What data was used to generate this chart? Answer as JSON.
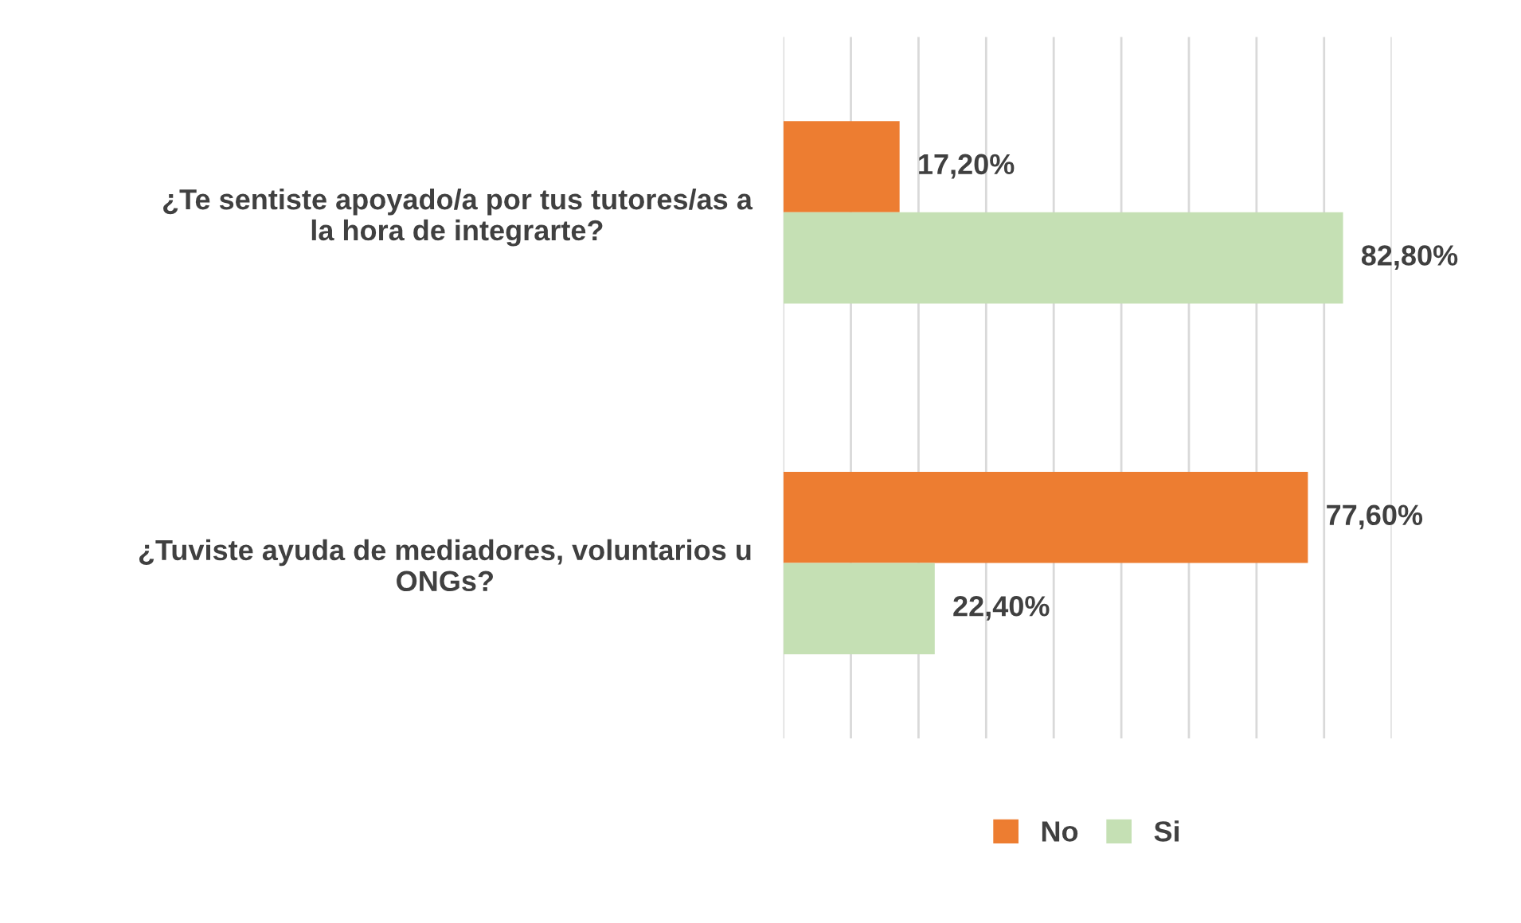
{
  "chart_data": {
    "type": "bar",
    "orientation": "horizontal",
    "categories": [
      "¿Te sentiste apoyado/a por tus tutores/as a la hora de integrarte?",
      "¿Tuviste ayuda de mediadores, voluntarios u ONGs?"
    ],
    "series": [
      {
        "name": "No",
        "color": "#ed7d31",
        "values": [
          17.2,
          77.6
        ],
        "value_labels": [
          "17,20%",
          "77,60%"
        ]
      },
      {
        "name": "Si",
        "color": "#c5e0b4",
        "values": [
          82.8,
          22.4
        ],
        "value_labels": [
          "82,80%",
          "22,40%"
        ]
      }
    ],
    "xlim": [
      0,
      90
    ],
    "xticks": [
      {
        "value": 0,
        "label": null
      },
      {
        "value": 10,
        "label": null
      },
      {
        "value": 20,
        "label": null
      },
      {
        "value": 30,
        "label": null
      },
      {
        "value": 40,
        "label": null
      },
      {
        "value": 50,
        "label": null
      },
      {
        "value": 60,
        "label": null
      },
      {
        "value": 70,
        "label": null
      },
      {
        "value": 80,
        "label": null
      },
      {
        "value": 90,
        "label": null
      }
    ],
    "grid": "x",
    "legend": "bottom",
    "tick_labels": "y"
  }
}
